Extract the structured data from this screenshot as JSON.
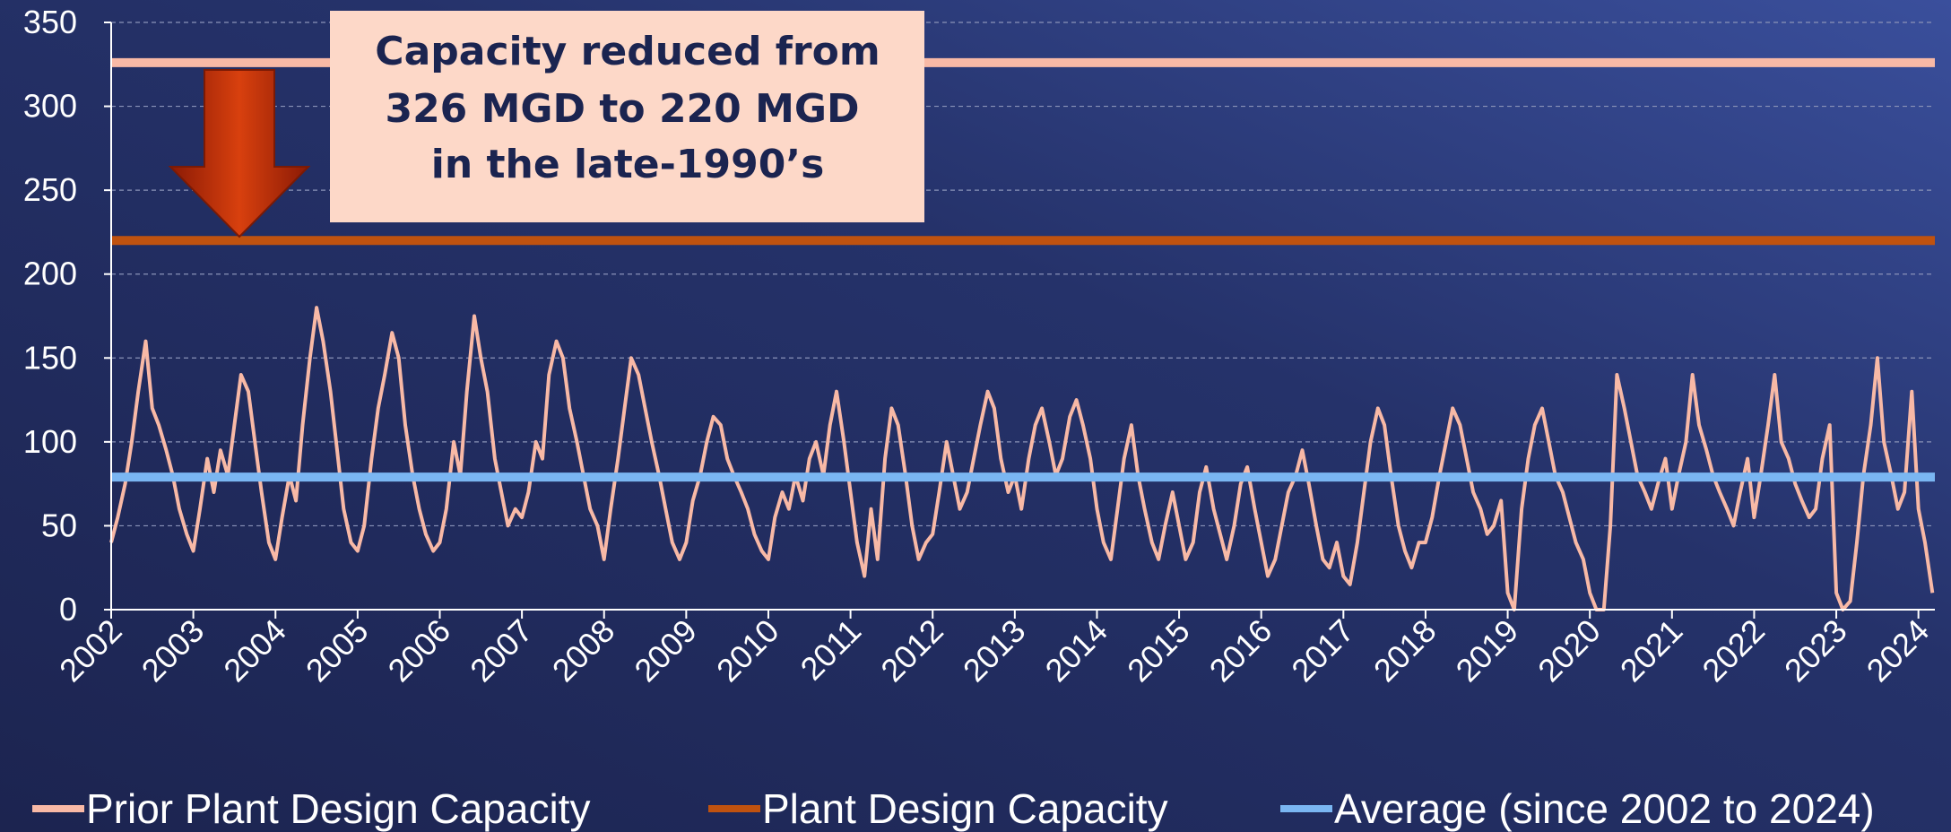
{
  "chart_data": {
    "type": "line",
    "x": [
      2002,
      2002.08,
      2002.17,
      2002.25,
      2002.33,
      2002.42,
      2002.5,
      2002.58,
      2002.67,
      2002.75,
      2002.83,
      2002.92,
      2003,
      2003.08,
      2003.17,
      2003.25,
      2003.33,
      2003.42,
      2003.5,
      2003.58,
      2003.67,
      2003.75,
      2003.83,
      2003.92,
      2004,
      2004.08,
      2004.17,
      2004.25,
      2004.33,
      2004.42,
      2004.5,
      2004.58,
      2004.67,
      2004.75,
      2004.83,
      2004.92,
      2005,
      2005.08,
      2005.17,
      2005.25,
      2005.33,
      2005.42,
      2005.5,
      2005.58,
      2005.67,
      2005.75,
      2005.83,
      2005.92,
      2006,
      2006.08,
      2006.17,
      2006.25,
      2006.33,
      2006.42,
      2006.5,
      2006.58,
      2006.67,
      2006.75,
      2006.83,
      2006.92,
      2007,
      2007.08,
      2007.17,
      2007.25,
      2007.33,
      2007.42,
      2007.5,
      2007.58,
      2007.67,
      2007.75,
      2007.83,
      2007.92,
      2008,
      2008.08,
      2008.17,
      2008.25,
      2008.33,
      2008.42,
      2008.5,
      2008.58,
      2008.67,
      2008.75,
      2008.83,
      2008.92,
      2009,
      2009.08,
      2009.17,
      2009.25,
      2009.33,
      2009.42,
      2009.5,
      2009.58,
      2009.67,
      2009.75,
      2009.83,
      2009.92,
      2010,
      2010.08,
      2010.17,
      2010.25,
      2010.33,
      2010.42,
      2010.5,
      2010.58,
      2010.67,
      2010.75,
      2010.83,
      2010.92,
      2011,
      2011.08,
      2011.17,
      2011.25,
      2011.33,
      2011.42,
      2011.5,
      2011.58,
      2011.67,
      2011.75,
      2011.83,
      2011.92,
      2012,
      2012.08,
      2012.17,
      2012.25,
      2012.33,
      2012.42,
      2012.5,
      2012.58,
      2012.67,
      2012.75,
      2012.83,
      2012.92,
      2013,
      2013.08,
      2013.17,
      2013.25,
      2013.33,
      2013.42,
      2013.5,
      2013.58,
      2013.67,
      2013.75,
      2013.83,
      2013.92,
      2014,
      2014.08,
      2014.17,
      2014.25,
      2014.33,
      2014.42,
      2014.5,
      2014.58,
      2014.67,
      2014.75,
      2014.83,
      2014.92,
      2015,
      2015.08,
      2015.17,
      2015.25,
      2015.33,
      2015.42,
      2015.5,
      2015.58,
      2015.67,
      2015.75,
      2015.83,
      2015.92,
      2016,
      2016.08,
      2016.17,
      2016.25,
      2016.33,
      2016.42,
      2016.5,
      2016.58,
      2016.67,
      2016.75,
      2016.83,
      2016.92,
      2017,
      2017.08,
      2017.17,
      2017.25,
      2017.33,
      2017.42,
      2017.5,
      2017.58,
      2017.67,
      2017.75,
      2017.83,
      2017.92,
      2018,
      2018.08,
      2018.17,
      2018.25,
      2018.33,
      2018.42,
      2018.5,
      2018.58,
      2018.67,
      2018.75,
      2018.83,
      2018.92,
      2019,
      2019.08,
      2019.17,
      2019.25,
      2019.33,
      2019.42,
      2019.5,
      2019.58,
      2019.67,
      2019.75,
      2019.83,
      2019.92,
      2020,
      2020.08,
      2020.17,
      2020.25,
      2020.33,
      2020.42,
      2020.5,
      2020.58,
      2020.67,
      2020.75,
      2020.83,
      2020.92,
      2021,
      2021.08,
      2021.17,
      2021.25,
      2021.33,
      2021.42,
      2021.5,
      2021.58,
      2021.67,
      2021.75,
      2021.83,
      2021.92,
      2022,
      2022.08,
      2022.17,
      2022.25,
      2022.33,
      2022.42,
      2022.5,
      2022.58,
      2022.67,
      2022.75,
      2022.83,
      2022.92,
      2023,
      2023.08,
      2023.17,
      2023.25,
      2023.33,
      2023.42,
      2023.5,
      2023.58,
      2023.67,
      2023.75,
      2023.83,
      2023.92,
      2024,
      2024.08,
      2024.17
    ],
    "series": [
      {
        "color": "#f8b9a6",
        "values": [
          40,
          55,
          75,
          100,
          130,
          160,
          120,
          110,
          95,
          80,
          60,
          45,
          35,
          60,
          90,
          70,
          95,
          80,
          110,
          140,
          130,
          100,
          70,
          40,
          30,
          55,
          80,
          65,
          110,
          150,
          180,
          160,
          130,
          95,
          60,
          40,
          35,
          50,
          90,
          120,
          140,
          165,
          150,
          110,
          80,
          60,
          45,
          35,
          40,
          60,
          100,
          80,
          130,
          175,
          150,
          130,
          90,
          70,
          50,
          60,
          55,
          70,
          100,
          90,
          140,
          160,
          150,
          120,
          100,
          80,
          60,
          50,
          30,
          60,
          90,
          120,
          150,
          140,
          120,
          100,
          80,
          60,
          40,
          30,
          40,
          65,
          80,
          100,
          115,
          110,
          90,
          80,
          70,
          60,
          45,
          35,
          30,
          55,
          70,
          60,
          80,
          65,
          90,
          100,
          80,
          110,
          130,
          100,
          70,
          40,
          20,
          60,
          30,
          90,
          120,
          110,
          80,
          50,
          30,
          40,
          45,
          70,
          100,
          80,
          60,
          70,
          90,
          110,
          130,
          120,
          90,
          70,
          80,
          60,
          90,
          110,
          120,
          100,
          80,
          90,
          115,
          125,
          110,
          90,
          60,
          40,
          30,
          60,
          90,
          110,
          80,
          60,
          40,
          30,
          50,
          70,
          50,
          30,
          40,
          70,
          85,
          60,
          45,
          30,
          50,
          75,
          85,
          60,
          40,
          20,
          30,
          50,
          70,
          80,
          95,
          75,
          50,
          30,
          25,
          40,
          20,
          15,
          40,
          70,
          100,
          120,
          110,
          80,
          50,
          35,
          25,
          40,
          40,
          55,
          80,
          100,
          120,
          110,
          90,
          70,
          60,
          45,
          50,
          65,
          10,
          0,
          60,
          90,
          110,
          120,
          100,
          80,
          70,
          55,
          40,
          30,
          10,
          0,
          0,
          50,
          140,
          120,
          100,
          80,
          70,
          60,
          75,
          90,
          60,
          80,
          100,
          140,
          110,
          95,
          80,
          70,
          60,
          50,
          70,
          90,
          55,
          80,
          110,
          140,
          100,
          90,
          75,
          65,
          55,
          60,
          90,
          110,
          10,
          0,
          5,
          40,
          80,
          110,
          150,
          100,
          80,
          60,
          70,
          130,
          60,
          40,
          10
        ]
      }
    ],
    "hlines": [
      {
        "name": "Prior Plant Design Capacity",
        "color": "#f8b9a6",
        "value": 326
      },
      {
        "name": "Plant Design Capacity",
        "color": "#c0520f",
        "value": 220
      },
      {
        "name": "Average (since 2002 to 2024)",
        "color": "#7ab6f2",
        "value": 79
      }
    ],
    "annotation": [
      "Capacity reduced from",
      "326 MGD to 220 MGD",
      "in the late-1990’s"
    ],
    "xlim": [
      2002,
      2024.2
    ],
    "xticks": [
      2002,
      2003,
      2004,
      2005,
      2006,
      2007,
      2008,
      2009,
      2010,
      2011,
      2012,
      2013,
      2014,
      2015,
      2016,
      2017,
      2018,
      2019,
      2020,
      2021,
      2022,
      2023,
      2024
    ],
    "ylim": [
      0,
      350
    ],
    "yticks": [
      0,
      50,
      100,
      150,
      200,
      250,
      300,
      350
    ],
    "grid": true,
    "legend": "bottom"
  }
}
